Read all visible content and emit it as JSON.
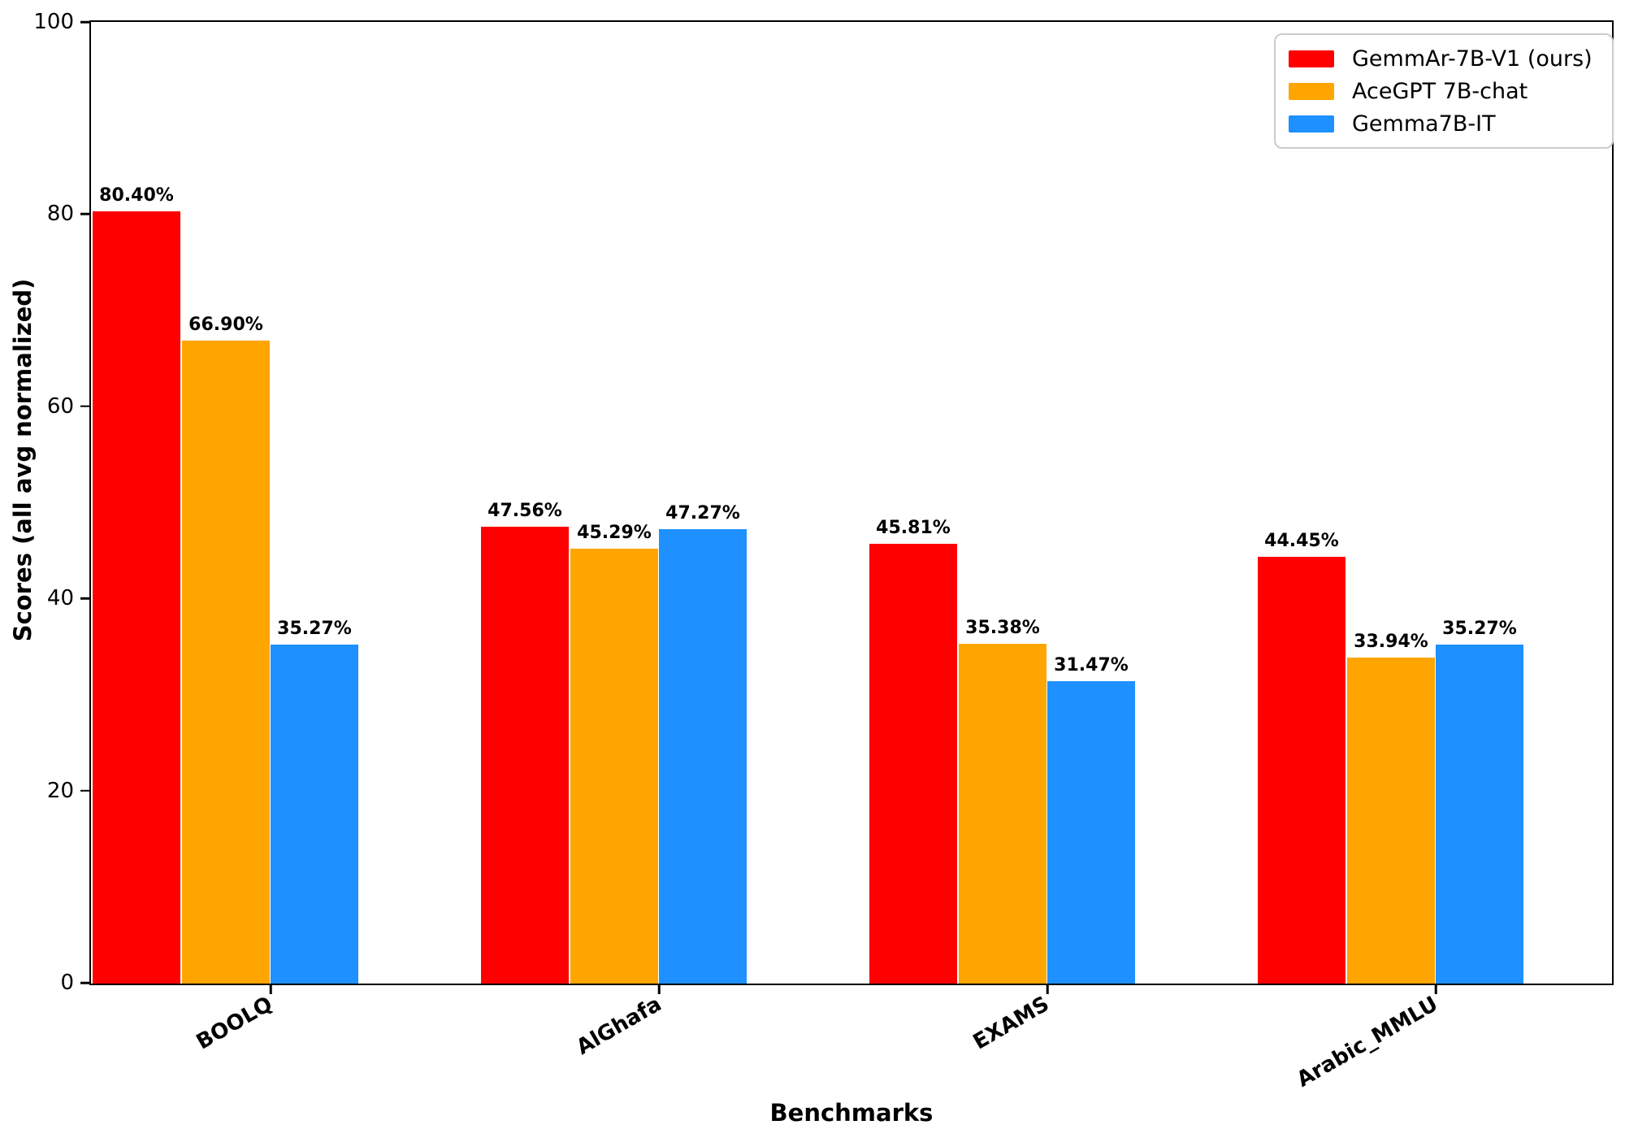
{
  "chart_data": {
    "type": "bar",
    "title": "",
    "xlabel": "Benchmarks",
    "ylabel": "Scores (all avg normalized)",
    "categories": [
      "BOOLQ",
      "AlGhafa",
      "EXAMS",
      "Arabic_MMLU"
    ],
    "series": [
      {
        "name": "GemmAr-7B-V1 (ours)",
        "color": "#FF0000",
        "values": [
          80.4,
          47.56,
          45.81,
          44.45
        ],
        "labels": [
          "80.40%",
          "47.56%",
          "45.81%",
          "44.45%"
        ]
      },
      {
        "name": "AceGPT 7B-chat",
        "color": "#FFA500",
        "values": [
          66.9,
          45.29,
          35.38,
          33.94
        ],
        "labels": [
          "66.90%",
          "45.29%",
          "35.38%",
          "33.94%"
        ]
      },
      {
        "name": "Gemma7B-IT",
        "color": "#1E90FF",
        "values": [
          35.27,
          47.27,
          31.47,
          35.27
        ],
        "labels": [
          "35.27%",
          "47.27%",
          "31.47%",
          "35.27%"
        ]
      }
    ],
    "ylim": [
      0,
      100
    ],
    "yticks": [
      0,
      20,
      40,
      60,
      80,
      100
    ],
    "grid": false,
    "legend_position": "upper-right"
  }
}
